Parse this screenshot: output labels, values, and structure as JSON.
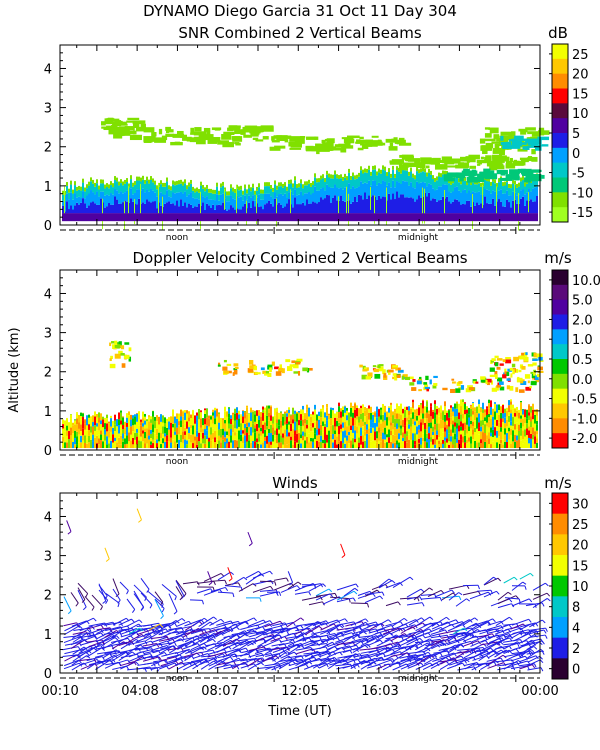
{
  "header": {
    "line1": "DYNAMO Diego Garcia  31 Oct 11 Day 304",
    "ylabel": "Altitude (km)",
    "xlabel": "Time (UT)",
    "noon_label": "noon",
    "midnight_label": "midnight"
  },
  "chart_data": [
    {
      "type": "heatmap",
      "title": "SNR Combined 2 Vertical Beams",
      "unit": "dB",
      "ylim": [
        0,
        4.6
      ],
      "yticks": [
        "0",
        "1",
        "2",
        "3",
        "4"
      ],
      "xlim_hours": [
        0.17,
        24.0
      ],
      "colorbar_labels": [
        "25",
        "20",
        "15",
        "10",
        "5",
        "0",
        "-5",
        "-10",
        "-15"
      ],
      "colorbar_colors": [
        "#f2ff00",
        "#ffc800",
        "#ff8c00",
        "#ff0000",
        "#5a0a3c",
        "#5000a0",
        "#1e1ee6",
        "#00a0ff",
        "#00c8c8",
        "#00c878",
        "#80e000",
        "#a0ff20"
      ]
    },
    {
      "type": "heatmap",
      "title": "Doppler Velocity Combined 2 Vertical Beams",
      "unit": "m/s",
      "ylim": [
        0,
        4.6
      ],
      "yticks": [
        "0",
        "1",
        "2",
        "3",
        "4"
      ],
      "xlim_hours": [
        0.17,
        24.0
      ],
      "colorbar_labels": [
        "10.0",
        "5.0",
        "2.0",
        "1.0",
        "0.5",
        "0.0",
        "-0.5",
        "-1.0",
        "-2.0"
      ],
      "colorbar_colors": [
        "#2a0030",
        "#5a0a7a",
        "#5000a0",
        "#1e1ee6",
        "#00a0ff",
        "#00c8c8",
        "#00c800",
        "#80e000",
        "#f2ff00",
        "#ffc800",
        "#ff8c00",
        "#ff0000"
      ]
    },
    {
      "type": "scatter",
      "title": "Winds",
      "unit": "m/s",
      "ylim": [
        0,
        4.6
      ],
      "yticks": [
        "0",
        "1",
        "2",
        "3",
        "4"
      ],
      "xticks": [
        "00:10",
        "04:08",
        "08:07",
        "12:05",
        "16:03",
        "20:02",
        "00:00"
      ],
      "xlim_hours": [
        0.17,
        24.0
      ],
      "colorbar_labels": [
        "30",
        "25",
        "20",
        "15",
        "10",
        "8",
        "4",
        "2",
        "0"
      ],
      "colorbar_colors": [
        "#ff0000",
        "#ff8c00",
        "#ffc800",
        "#f2ff00",
        "#00c800",
        "#00c8c8",
        "#00a0ff",
        "#1e1ee6",
        "#2a0030"
      ]
    }
  ]
}
